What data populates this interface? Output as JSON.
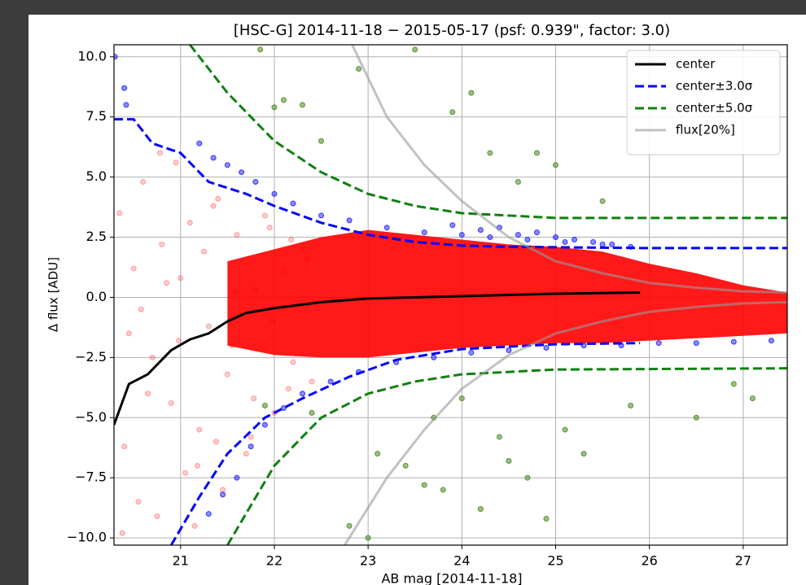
{
  "chart_data": {
    "type": "scatter",
    "title": "[HSC-G]   2014-11-18 − 2015-05-17 (psf: 0.939\", factor: 3.0)",
    "x_label": "AB mag [2014-11-18]",
    "y_label": "Δ flux [ADU]",
    "xlim": [
      20.29,
      27.47
    ],
    "ylim": [
      -10.3,
      10.5
    ],
    "xticks": [
      21,
      22,
      23,
      24,
      25,
      26,
      27
    ],
    "yticks": [
      {
        "value": -10,
        "label": "−10.0"
      },
      {
        "value": -7.5,
        "label": "−7.5"
      },
      {
        "value": -5,
        "label": "−5.0"
      },
      {
        "value": -2.5,
        "label": "−2.5"
      },
      {
        "value": 0,
        "label": "0.0"
      },
      {
        "value": 2.5,
        "label": "2.5"
      },
      {
        "value": 5,
        "label": "5.0"
      },
      {
        "value": 7.5,
        "label": "7.5"
      },
      {
        "value": 10,
        "label": "10.0"
      }
    ],
    "grid": true,
    "legend": "upper right",
    "series": [
      {
        "type": "band",
        "color": "#ff0000",
        "x": [
          21.5,
          22.0,
          22.5,
          23.0,
          23.5,
          24.0,
          24.5,
          25.0,
          25.5,
          26.0,
          26.5,
          27.0,
          27.47
        ],
        "high": [
          1.5,
          2.0,
          2.5,
          2.8,
          2.6,
          2.4,
          2.2,
          2.1,
          1.9,
          1.4,
          1.0,
          0.5,
          0.2
        ],
        "low": [
          -2.0,
          -2.4,
          -2.5,
          -2.5,
          -2.3,
          -2.1,
          -2.0,
          -1.9,
          -1.9,
          -1.8,
          -1.7,
          -1.6,
          -1.5
        ]
      },
      {
        "type": "points",
        "color": "#ff0000",
        "alpha": 0.2,
        "x": [
          20.35,
          20.4,
          20.5,
          20.55,
          20.6,
          20.7,
          20.75,
          20.8,
          20.9,
          20.95,
          21.0,
          21.05,
          21.1,
          21.2,
          21.25,
          21.3,
          21.4,
          21.45,
          21.5,
          21.6,
          21.7,
          21.8,
          21.9,
          22.0,
          22.1,
          22.2,
          22.3,
          22.4,
          20.45,
          20.65,
          20.85,
          21.15,
          21.35,
          21.55,
          21.75,
          21.95,
          22.15,
          22.35,
          20.38,
          20.58,
          20.78,
          20.98,
          21.18,
          21.38,
          21.58,
          21.78,
          21.98,
          22.18
        ],
        "values": [
          3.5,
          -6.2,
          1.2,
          -8.5,
          4.8,
          -2.5,
          -9.1,
          2.2,
          -4.4,
          5.6,
          0.8,
          -7.3,
          3.1,
          -5.5,
          1.9,
          -1.2,
          4.1,
          -8.0,
          -3.2,
          2.6,
          -6.5,
          0.3,
          3.4,
          -4.8,
          1.1,
          -2.7,
          2.0,
          -3.5,
          -1.5,
          -4.0,
          0.6,
          -9.5,
          3.8,
          -2.0,
          -5.8,
          2.9,
          -3.8,
          1.6,
          -9.8,
          -0.5,
          6.0,
          -1.8,
          -7.0,
          -6.0,
          0.2,
          -4.2,
          -1.0,
          2.4
        ]
      },
      {
        "type": "points",
        "color": "#0000ff",
        "alpha": 0.45,
        "x": [
          20.3,
          20.4,
          20.42,
          21.2,
          21.35,
          21.5,
          21.65,
          21.8,
          22.0,
          22.2,
          22.5,
          22.8,
          23.2,
          23.6,
          24.0,
          24.3,
          24.7,
          25.1,
          25.5,
          25.8,
          21.3,
          21.45,
          21.6,
          21.75,
          21.9,
          22.1,
          22.3,
          22.6,
          22.9,
          23.3,
          23.7,
          24.1,
          24.5,
          24.9,
          25.3,
          25.7,
          26.1,
          26.5,
          26.9,
          27.3,
          23.9,
          24.2,
          24.4,
          24.6,
          24.8,
          25.0,
          25.2,
          25.4,
          25.6
        ],
        "values": [
          10.0,
          8.7,
          8.0,
          6.4,
          5.8,
          5.5,
          5.2,
          4.8,
          4.3,
          3.9,
          3.4,
          3.2,
          2.9,
          2.7,
          2.6,
          2.5,
          2.4,
          2.3,
          2.2,
          2.1,
          -9.0,
          -8.2,
          -7.5,
          -6.2,
          -5.3,
          -4.6,
          -4.0,
          -3.5,
          -3.1,
          -2.7,
          -2.5,
          -2.3,
          -2.2,
          -2.1,
          -2.0,
          -2.0,
          -1.9,
          -1.9,
          -1.85,
          -1.8,
          3.0,
          2.8,
          2.9,
          2.6,
          2.7,
          2.5,
          2.4,
          2.3,
          2.2
        ]
      },
      {
        "type": "points",
        "color": "#4a8a20",
        "alpha": 0.55,
        "x": [
          21.85,
          22.0,
          22.1,
          22.3,
          22.5,
          22.9,
          23.5,
          23.9,
          24.1,
          24.3,
          24.6,
          24.8,
          25.0,
          25.5,
          22.4,
          22.8,
          23.1,
          23.4,
          23.7,
          24.0,
          24.2,
          24.4,
          24.5,
          24.7,
          25.1,
          25.3,
          25.8,
          26.5,
          26.9,
          27.1,
          21.9,
          23.0,
          23.6,
          23.8,
          24.9
        ],
        "values": [
          10.3,
          7.9,
          8.2,
          8.0,
          6.5,
          9.5,
          10.3,
          7.7,
          8.5,
          6.0,
          4.8,
          6.0,
          5.5,
          4.0,
          -4.8,
          -9.5,
          -6.5,
          -7.0,
          -5.0,
          -4.2,
          -8.8,
          -5.8,
          -6.8,
          -7.5,
          -5.5,
          -6.5,
          -4.5,
          -5.0,
          -3.6,
          -4.2,
          -4.5,
          -10.0,
          -7.8,
          -8.0,
          -9.2
        ]
      },
      {
        "type": "line",
        "name": "center",
        "color": "#000000",
        "dash": false,
        "x": [
          20.29,
          20.45,
          20.65,
          20.9,
          21.1,
          21.3,
          21.5,
          21.7,
          22.0,
          22.5,
          23.0,
          23.5,
          24.0,
          24.5,
          25.0,
          25.9
        ],
        "values": [
          -5.3,
          -3.6,
          -3.2,
          -2.2,
          -1.75,
          -1.5,
          -1.0,
          -0.65,
          -0.45,
          -0.2,
          -0.05,
          0.0,
          0.05,
          0.1,
          0.15,
          0.2
        ]
      },
      {
        "type": "line",
        "name": "center±3.0σ",
        "color": "#0000ff",
        "dash": true,
        "x": [
          20.29,
          20.5,
          20.7,
          21.0,
          21.3,
          21.7,
          22.0,
          22.5,
          23.0,
          23.5,
          24.0,
          24.5,
          25.9,
          27.47,
          null,
          20.9,
          21.2,
          21.5,
          21.9,
          22.3,
          22.8,
          23.3,
          24.0,
          25.0,
          25.9
        ],
        "values": [
          7.4,
          7.4,
          6.4,
          6.0,
          4.8,
          4.3,
          3.8,
          3.1,
          2.6,
          2.3,
          2.15,
          2.1,
          2.05,
          2.05,
          null,
          -10.3,
          -8.3,
          -6.5,
          -5.0,
          -4.2,
          -3.3,
          -2.6,
          -2.15,
          -1.95,
          -1.9
        ]
      },
      {
        "type": "line",
        "name": "center±5.0σ",
        "color": "#108010",
        "dash": true,
        "x": [
          21.1,
          21.5,
          22.0,
          22.5,
          23.0,
          23.5,
          24.0,
          25.0,
          27.47,
          null,
          21.5,
          22.0,
          22.5,
          23.0,
          23.5,
          24.0,
          25.0,
          27.47
        ],
        "values": [
          10.5,
          8.5,
          6.5,
          5.2,
          4.3,
          3.8,
          3.5,
          3.3,
          3.3,
          null,
          -10.3,
          -7.0,
          -5.0,
          -4.0,
          -3.5,
          -3.2,
          -3.0,
          -2.95
        ]
      },
      {
        "type": "line",
        "name": "flux[20%]",
        "color": "#999999",
        "dash": false,
        "x": [
          22.83,
          23.2,
          23.6,
          24.0,
          24.5,
          25.0,
          25.5,
          26.0,
          26.5,
          27.0,
          27.47,
          null,
          22.75,
          23.2,
          23.6,
          24.0,
          24.5,
          25.0,
          25.5,
          26.0,
          26.5,
          27.0,
          27.47
        ],
        "values": [
          10.5,
          7.5,
          5.5,
          4.0,
          2.5,
          1.5,
          1.0,
          0.6,
          0.4,
          0.25,
          0.2,
          null,
          -10.3,
          -7.5,
          -5.5,
          -3.8,
          -2.4,
          -1.5,
          -1.0,
          -0.6,
          -0.4,
          -0.25,
          -0.2
        ]
      }
    ]
  }
}
